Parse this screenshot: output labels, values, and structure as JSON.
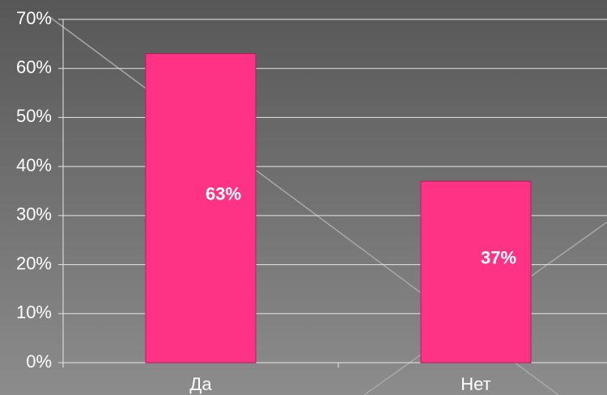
{
  "chart_data": {
    "type": "bar",
    "categories": [
      "Да",
      "Нет"
    ],
    "values": [
      63,
      37
    ],
    "value_labels": [
      "63%",
      "37%"
    ],
    "color": "#ff3385",
    "ylim": [
      0,
      70
    ],
    "yticks": [
      {
        "value": 0,
        "label": "0%"
      },
      {
        "value": 10,
        "label": "10%"
      },
      {
        "value": 20,
        "label": "20%"
      },
      {
        "value": 30,
        "label": "30%"
      },
      {
        "value": 40,
        "label": "40%"
      },
      {
        "value": 50,
        "label": "50%"
      },
      {
        "value": 60,
        "label": "60%"
      },
      {
        "value": 70,
        "label": "70%"
      }
    ],
    "grid": true
  }
}
